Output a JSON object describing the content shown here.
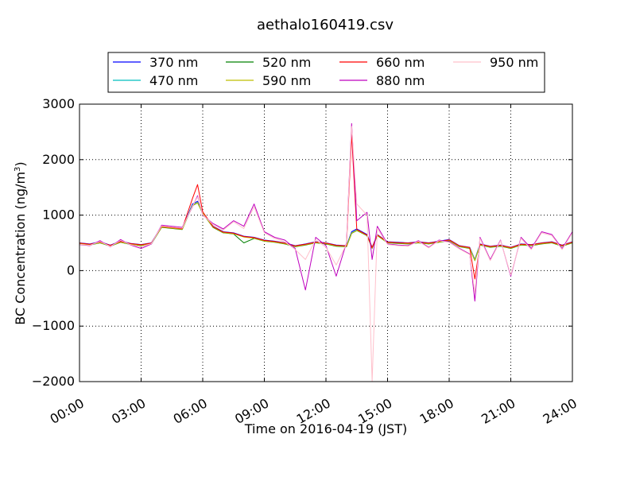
{
  "chart_data": {
    "type": "line",
    "title": "aethalo160419.csv",
    "xlabel": "Time on 2016-04-19 (JST)",
    "ylabel": "BC Concentration (ng/m",
    "ylabel_sup": "3",
    "ylabel_end": ")",
    "xlim": [
      "00:00",
      "24:00"
    ],
    "ylim": [
      -2000,
      3000
    ],
    "grid": true,
    "legend_position": "top",
    "x_ticks": [
      "00:00",
      "03:00",
      "06:00",
      "09:00",
      "12:00",
      "15:00",
      "18:00",
      "21:00",
      "24:00"
    ],
    "y_ticks": [
      "3000",
      "2000",
      "1000",
      "0",
      "−1000",
      "−2000"
    ],
    "y_tick_values": [
      3000,
      2000,
      1000,
      0,
      -1000,
      -2000
    ],
    "x_times": [
      "00:00",
      "00:30",
      "01:00",
      "01:30",
      "02:00",
      "02:30",
      "03:00",
      "03:30",
      "04:00",
      "04:30",
      "05:00",
      "05:30",
      "05:45",
      "06:00",
      "06:30",
      "07:00",
      "07:30",
      "08:00",
      "08:30",
      "09:00",
      "09:30",
      "10:00",
      "10:30",
      "11:00",
      "11:30",
      "12:00",
      "12:30",
      "13:00",
      "13:15",
      "13:30",
      "14:00",
      "14:15",
      "14:30",
      "15:00",
      "15:30",
      "16:00",
      "16:30",
      "17:00",
      "17:30",
      "18:00",
      "18:30",
      "19:00",
      "19:15",
      "19:30",
      "20:00",
      "20:30",
      "21:00",
      "21:30",
      "22:00",
      "22:30",
      "23:00",
      "23:30",
      "24:00"
    ],
    "series": [
      {
        "name": "370 nm",
        "color": "#0000ff",
        "values": [
          500,
          480,
          520,
          460,
          530,
          490,
          470,
          500,
          800,
          780,
          760,
          1200,
          1250,
          1050,
          800,
          700,
          680,
          620,
          600,
          550,
          530,
          500,
          450,
          480,
          520,
          500,
          460,
          450,
          700,
          750,
          650,
          420,
          650,
          520,
          510,
          500,
          520,
          500,
          530,
          560,
          450,
          420,
          200,
          480,
          440,
          460,
          420,
          480,
          470,
          500,
          520,
          460,
          520
        ]
      },
      {
        "name": "470 nm",
        "color": "#00bfbf",
        "values": [
          490,
          470,
          510,
          450,
          520,
          480,
          460,
          490,
          790,
          770,
          750,
          1180,
          1230,
          1040,
          790,
          690,
          670,
          610,
          590,
          540,
          520,
          490,
          440,
          470,
          510,
          490,
          450,
          440,
          680,
          730,
          640,
          410,
          640,
          510,
          500,
          490,
          510,
          490,
          520,
          550,
          440,
          410,
          190,
          470,
          430,
          450,
          410,
          470,
          460,
          490,
          510,
          450,
          510
        ]
      },
      {
        "name": "520 nm",
        "color": "#008000",
        "values": [
          480,
          460,
          500,
          440,
          510,
          470,
          450,
          480,
          780,
          760,
          740,
          1170,
          1220,
          1030,
          780,
          680,
          660,
          500,
          580,
          530,
          510,
          480,
          430,
          460,
          500,
          480,
          440,
          430,
          670,
          720,
          630,
          400,
          630,
          500,
          490,
          480,
          500,
          480,
          510,
          540,
          430,
          400,
          180,
          460,
          420,
          440,
          400,
          460,
          450,
          480,
          500,
          440,
          500
        ]
      },
      {
        "name": "590 nm",
        "color": "#bfbf00",
        "values": [
          485,
          465,
          505,
          445,
          515,
          475,
          455,
          485,
          785,
          765,
          745,
          1175,
          1225,
          1035,
          785,
          685,
          665,
          605,
          585,
          535,
          515,
          485,
          435,
          465,
          505,
          485,
          445,
          435,
          675,
          725,
          635,
          405,
          635,
          505,
          495,
          485,
          505,
          485,
          515,
          545,
          435,
          405,
          185,
          465,
          425,
          445,
          405,
          465,
          455,
          485,
          505,
          445,
          505
        ]
      },
      {
        "name": "660 nm",
        "color": "#ff0000",
        "values": [
          495,
          475,
          515,
          455,
          525,
          485,
          465,
          495,
          795,
          775,
          755,
          1300,
          1550,
          1060,
          795,
          695,
          675,
          615,
          595,
          545,
          525,
          495,
          445,
          475,
          515,
          495,
          455,
          445,
          2450,
          740,
          640,
          415,
          645,
          515,
          505,
          495,
          515,
          495,
          525,
          555,
          445,
          415,
          -150,
          475,
          435,
          455,
          415,
          475,
          465,
          495,
          515,
          455,
          515
        ]
      },
      {
        "name": "880 nm",
        "color": "#bf00bf",
        "values": [
          470,
          450,
          540,
          430,
          560,
          460,
          400,
          480,
          820,
          800,
          780,
          1150,
          1350,
          1000,
          850,
          750,
          900,
          800,
          1200,
          700,
          600,
          550,
          400,
          -350,
          600,
          450,
          -100,
          500,
          2650,
          900,
          1050,
          200,
          800,
          480,
          460,
          450,
          540,
          420,
          550,
          520,
          400,
          300,
          -550,
          600,
          200,
          550,
          -100,
          600,
          400,
          700,
          650,
          400,
          700
        ]
      },
      {
        "name": "950 nm",
        "color": "#ffc0cb",
        "values": [
          475,
          455,
          525,
          435,
          545,
          465,
          430,
          485,
          805,
          785,
          765,
          1160,
          1330,
          1010,
          830,
          730,
          880,
          760,
          1150,
          680,
          580,
          520,
          380,
          200,
          560,
          420,
          100,
          480,
          2600,
          1200,
          1000,
          -2000,
          760,
          470,
          450,
          440,
          530,
          410,
          540,
          510,
          390,
          290,
          -400,
          580,
          180,
          540,
          -80,
          580,
          380,
          680,
          630,
          380,
          680
        ]
      }
    ]
  }
}
